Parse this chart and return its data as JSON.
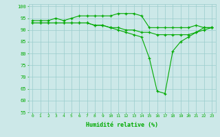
{
  "xlabel": "Humidité relative (%)",
  "hours": [
    0,
    1,
    2,
    3,
    4,
    5,
    6,
    7,
    8,
    9,
    10,
    11,
    12,
    13,
    14,
    15,
    16,
    17,
    18,
    19,
    20,
    21,
    22,
    23
  ],
  "line1": [
    94,
    94,
    94,
    95,
    94,
    95,
    96,
    96,
    96,
    96,
    96,
    97,
    97,
    97,
    96,
    91,
    91,
    91,
    91,
    91,
    91,
    92,
    91,
    91
  ],
  "line2": [
    93,
    93,
    93,
    93,
    93,
    93,
    93,
    93,
    92,
    92,
    91,
    91,
    90,
    90,
    89,
    89,
    88,
    88,
    88,
    88,
    88,
    89,
    90,
    91
  ],
  "line3": [
    93,
    93,
    93,
    93,
    93,
    93,
    93,
    93,
    92,
    92,
    91,
    90,
    89,
    88,
    87,
    78,
    64,
    63,
    81,
    85,
    87,
    89,
    91,
    91
  ],
  "line_color": "#00aa00",
  "bg_color": "#cce8e8",
  "grid_color": "#99cccc",
  "ylim": [
    55,
    101
  ],
  "yticks": [
    55,
    60,
    65,
    70,
    75,
    80,
    85,
    90,
    95,
    100
  ],
  "figsize": [
    3.2,
    2.0
  ],
  "dpi": 100
}
